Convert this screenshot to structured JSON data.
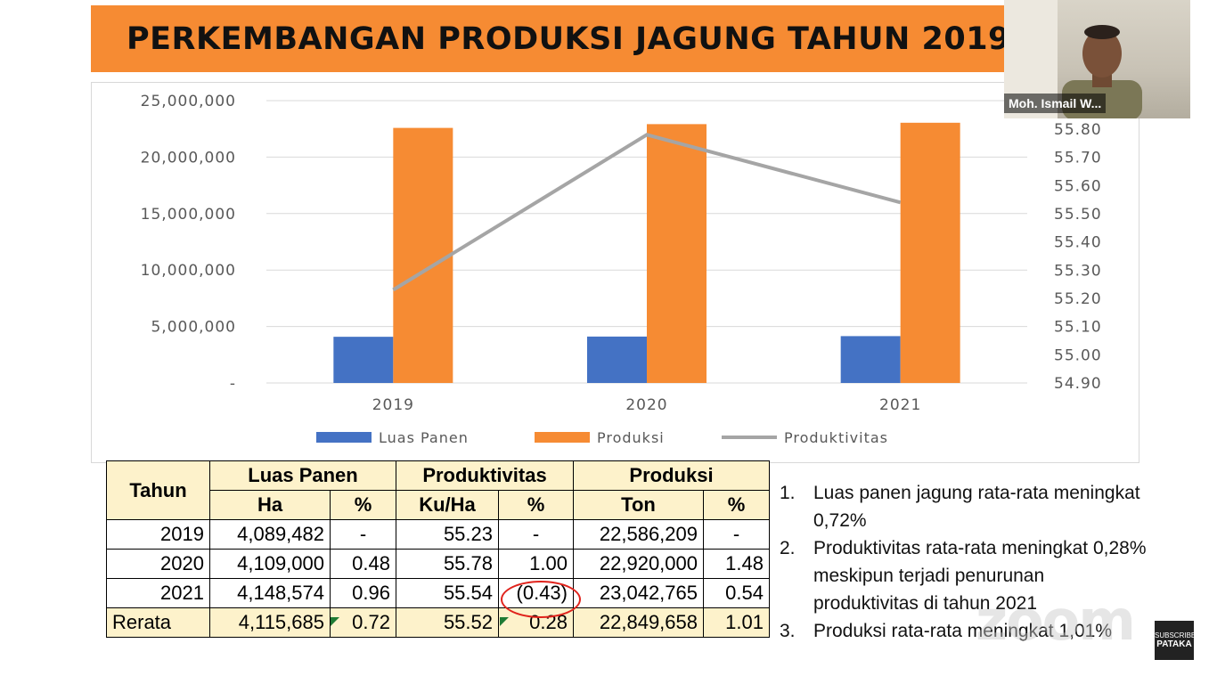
{
  "slide": {
    "title": "PERKEMBANGAN PRODUKSI JAGUNG TAHUN 2019"
  },
  "chart_data": {
    "type": "bar",
    "categories": [
      "2019",
      "2020",
      "2021"
    ],
    "series": [
      {
        "name": "Luas Panen",
        "kind": "bar",
        "axis": "left",
        "color": "#4472c4",
        "values": [
          4089482,
          4109000,
          4148574
        ]
      },
      {
        "name": "Produksi",
        "kind": "bar",
        "axis": "left",
        "color": "#f68b33",
        "values": [
          22586209,
          22920000,
          23042765
        ]
      },
      {
        "name": "Produktivitas",
        "kind": "line",
        "axis": "right",
        "color": "#a5a5a5",
        "values": [
          55.23,
          55.78,
          55.54
        ]
      }
    ],
    "y_left": {
      "min": 0,
      "max": 25000000,
      "ticks": [
        "-",
        "5,000,000",
        "10,000,000",
        "15,000,000",
        "20,000,000",
        "25,000,000"
      ]
    },
    "y_right": {
      "min": 54.9,
      "max": 55.8,
      "ticks": [
        "54.90",
        "55.00",
        "55.10",
        "55.20",
        "55.30",
        "55.40",
        "55.50",
        "55.60",
        "55.70",
        "55.80"
      ]
    },
    "legend_position": "bottom",
    "grid": true
  },
  "table": {
    "header_tahun": "Tahun",
    "group_headers": [
      "Luas Panen",
      "Produktivitas",
      "Produksi"
    ],
    "sub_headers": [
      "Ha",
      "%",
      "Ku/Ha",
      "%",
      "Ton",
      "%"
    ],
    "rows": [
      [
        "2019",
        "4,089,482",
        "-",
        "55.23",
        "-",
        "22,586,209",
        "-"
      ],
      [
        "2020",
        "4,109,000",
        "0.48",
        "55.78",
        "1.00",
        "22,920,000",
        "1.48"
      ],
      [
        "2021",
        "4,148,574",
        "0.96",
        "55.54",
        "(0.43)",
        "23,042,765",
        "0.54"
      ]
    ],
    "avg_row": [
      "Rerata",
      "4,115,685",
      "0.72",
      "55.52",
      "0.28",
      "22,849,658",
      "1.01"
    ]
  },
  "notes": [
    {
      "num": "1.",
      "text": "Luas panen jagung rata-rata meningkat 0,72%"
    },
    {
      "num": "2.",
      "text": "Produktivitas rata-rata meningkat 0,28% meskipun terjadi penurunan produktivitas di tahun 2021"
    },
    {
      "num": "3.",
      "text": "Produksi rata-rata meningkat 1,01%"
    }
  ],
  "video": {
    "participant_name": "Moh. Ismail W..."
  },
  "overlay": {
    "watermark": "zoom",
    "badge_top": "SUBSCRIBE",
    "badge_bottom": "PATAKA"
  }
}
